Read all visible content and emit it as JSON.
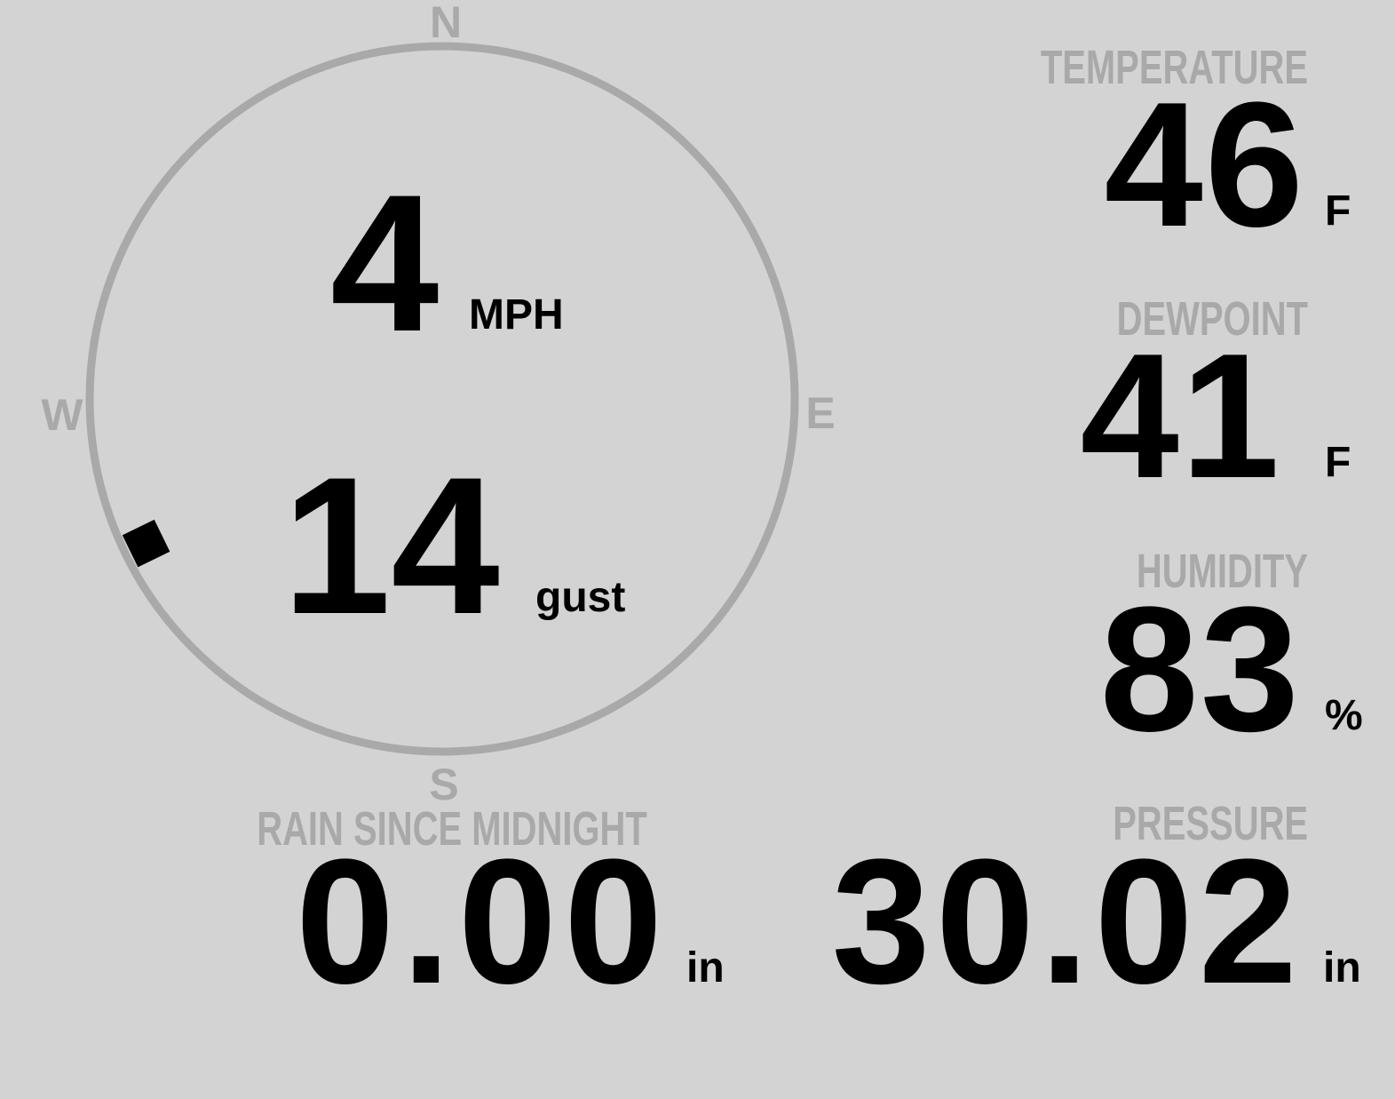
{
  "compass": {
    "north": "N",
    "south": "S",
    "east": "E",
    "west": "W",
    "wind_direction_deg": 244
  },
  "wind": {
    "speed": "4",
    "speed_unit": "MPH",
    "gust": "14",
    "gust_unit": "gust"
  },
  "temperature": {
    "label": "TEMPERATURE",
    "value": "46",
    "unit": "F"
  },
  "dewpoint": {
    "label": "DEWPOINT",
    "value": "41",
    "unit": "F"
  },
  "humidity": {
    "label": "HUMIDITY",
    "value": "83",
    "unit": "%"
  },
  "rain": {
    "label": "RAIN SINCE MIDNIGHT",
    "value": "0.00",
    "unit": "in"
  },
  "pressure": {
    "label": "PRESSURE",
    "value": "30.02",
    "unit": "in"
  },
  "colors": {
    "background": "#d3d3d3",
    "label": "#a9a9a9",
    "value": "#000000",
    "ring": "#a9a9a9"
  }
}
